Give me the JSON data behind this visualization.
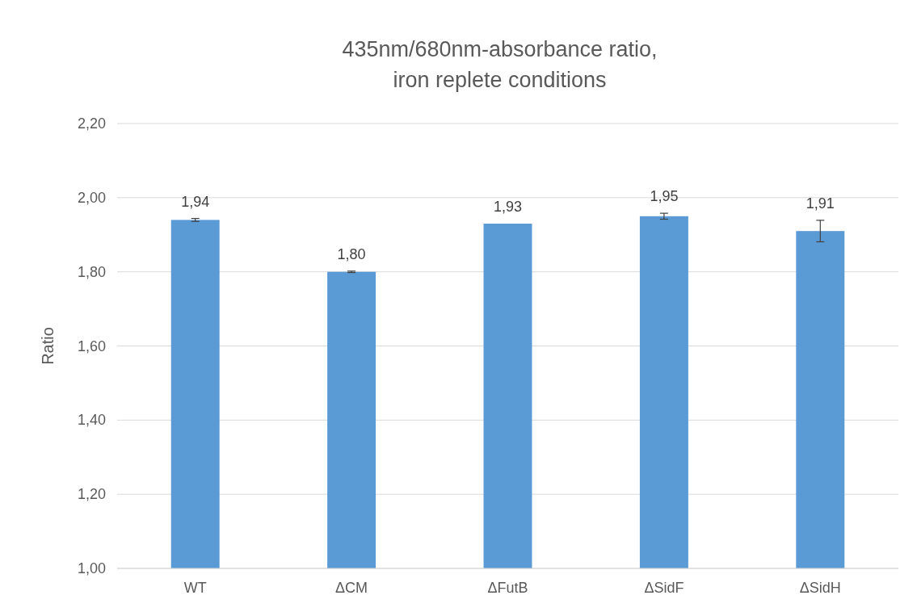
{
  "chart_data": {
    "type": "bar",
    "title": "435nm/680nm-absorbance ratio,\niron replete conditions",
    "ylabel": "Ratio",
    "categories": [
      "WT",
      "ΔCM",
      "ΔFutB",
      "ΔSidF",
      "ΔSidH"
    ],
    "values": [
      1.94,
      1.8,
      1.93,
      1.95,
      1.91
    ],
    "color": "#5b9bd5",
    "errors": [
      0.004,
      0.002,
      null,
      0.008,
      0.029
    ],
    "value_labels": [
      "1,94",
      "1,80",
      "1,93",
      "1,95",
      "1,91"
    ],
    "ylim": [
      1.0,
      2.2
    ],
    "yticks": [
      {
        "value": 1.0,
        "label": "1,00"
      },
      {
        "value": 1.2,
        "label": "1,20"
      },
      {
        "value": 1.4,
        "label": "1,40"
      },
      {
        "value": 1.6,
        "label": "1,60"
      },
      {
        "value": 1.8,
        "label": "1,80"
      },
      {
        "value": 2.0,
        "label": "2,00"
      },
      {
        "value": 2.2,
        "label": "2,20"
      }
    ],
    "grid": "y"
  }
}
